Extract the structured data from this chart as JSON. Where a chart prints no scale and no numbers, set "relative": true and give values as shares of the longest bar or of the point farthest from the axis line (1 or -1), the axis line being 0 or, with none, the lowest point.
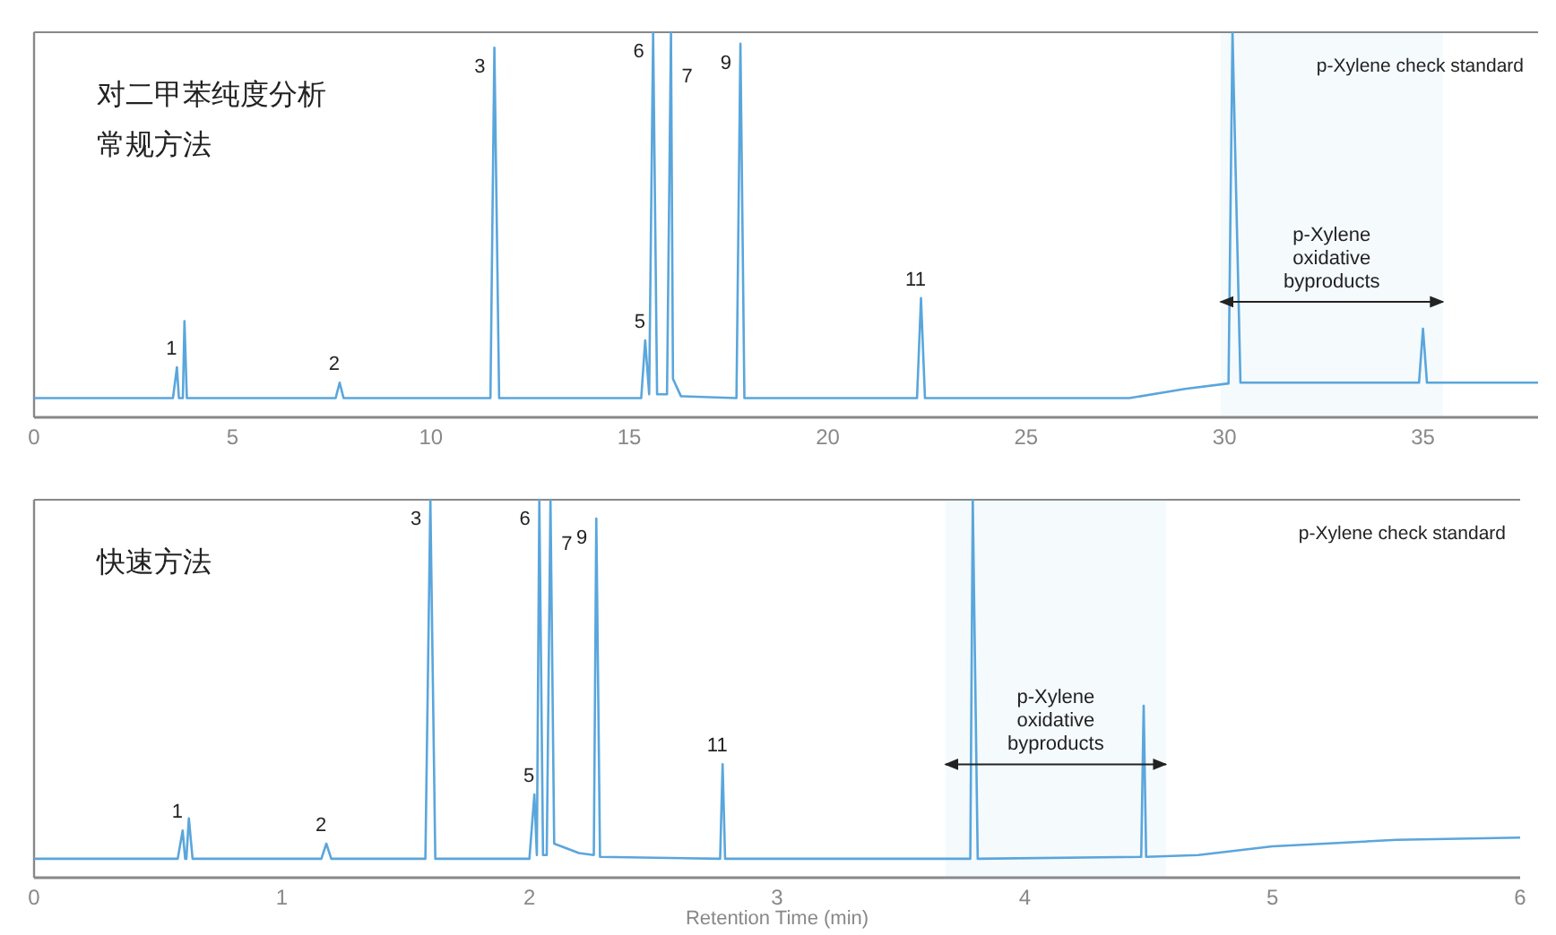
{
  "chart_data": [
    {
      "type": "line",
      "relative": true,
      "title": "对二甲苯纯度分析",
      "subtitle": "常规方法",
      "xlim": [
        0,
        37.9
      ],
      "xticks": [
        0,
        5,
        10,
        15,
        20,
        25,
        30,
        35
      ],
      "grid": false,
      "series": [
        {
          "color": "#5aa6dc",
          "x": [
            0,
            3.5,
            3.6,
            3.65,
            3.75,
            3.79,
            3.85,
            7.6,
            7.7,
            7.8,
            11.5,
            11.6,
            11.72,
            15.3,
            15.4,
            15.5,
            15.6,
            15.7,
            15.95,
            16.05,
            16.1,
            16.3,
            17.7,
            17.8,
            17.9,
            22.25,
            22.35,
            22.45,
            27.6,
            29,
            30.1,
            30.2,
            30.4,
            34.9,
            35.0,
            35.1,
            37.9
          ],
          "values": [
            0.05,
            0.05,
            0.13,
            0.05,
            0.05,
            0.25,
            0.05,
            0.05,
            0.09,
            0.05,
            0.05,
            0.96,
            0.05,
            0.05,
            0.2,
            0.06,
            1,
            0.06,
            0.06,
            1,
            0.1,
            0.055,
            0.05,
            0.97,
            0.05,
            0.05,
            0.31,
            0.05,
            0.05,
            0.074,
            0.088,
            1,
            0.09,
            0.09,
            0.23,
            0.09,
            0.09
          ]
        }
      ],
      "bands": [
        {
          "axis": "x",
          "from": 29.9,
          "to": 35.5,
          "label": "p-Xylene\noxidative\nbyproducts"
        }
      ],
      "annotations": [
        "p-Xylene check standard",
        {
          "text": "1",
          "x": 3.6,
          "y": 0.13
        },
        {
          "text": "2",
          "x": 7.7,
          "y": 0.09
        },
        {
          "text": "3",
          "x": 11.6,
          "y": 0.96
        },
        {
          "text": "5",
          "x": 15.4,
          "y": 0.2
        },
        {
          "text": "6",
          "x": 15.6,
          "y": 1
        },
        {
          "text": "7",
          "x": 16.05,
          "y": 1
        },
        {
          "text": "9",
          "x": 17.8,
          "y": 0.97
        },
        {
          "text": "11",
          "x": 22.35,
          "y": 0.31
        }
      ]
    },
    {
      "type": "line",
      "relative": true,
      "title": "快速方法",
      "xlabel": "Retention Time (min)",
      "xlim": [
        0,
        6
      ],
      "xticks": [
        0,
        1,
        2,
        3,
        4,
        5,
        6
      ],
      "grid": false,
      "series": [
        {
          "color": "#5aa6dc",
          "x": [
            0,
            0.58,
            0.6,
            0.61,
            0.615,
            0.625,
            0.64,
            1.16,
            1.18,
            1.2,
            1.58,
            1.6,
            1.62,
            2.0,
            2.02,
            2.03,
            2.04,
            2.055,
            2.07,
            2.085,
            2.1,
            2.2,
            2.26,
            2.27,
            2.285,
            2.77,
            2.78,
            2.79,
            3.78,
            3.79,
            3.81,
            4.47,
            4.48,
            4.49,
            4.7,
            5,
            5.5,
            6
          ],
          "values": [
            0.05,
            0.05,
            0.125,
            0.05,
            0.05,
            0.157,
            0.05,
            0.05,
            0.09,
            0.05,
            0.05,
            1,
            0.05,
            0.05,
            0.22,
            0.06,
            1,
            0.06,
            0.06,
            1,
            0.09,
            0.065,
            0.06,
            0.95,
            0.055,
            0.05,
            0.3,
            0.05,
            0.05,
            1,
            0.05,
            0.055,
            0.455,
            0.055,
            0.06,
            0.083,
            0.1,
            0.106
          ]
        }
      ],
      "bands": [
        {
          "axis": "x",
          "from": 3.68,
          "to": 4.57,
          "label": "p-Xylene\noxidative\nbyproducts"
        }
      ],
      "annotations": [
        "p-Xylene check standard",
        {
          "text": "1",
          "x": 0.6,
          "y": 0.125
        },
        {
          "text": "2",
          "x": 1.18,
          "y": 0.09
        },
        {
          "text": "3",
          "x": 1.6,
          "y": 1
        },
        {
          "text": "5",
          "x": 2.02,
          "y": 0.22
        },
        {
          "text": "6",
          "x": 2.04,
          "y": 1
        },
        {
          "text": "7",
          "x": 2.085,
          "y": 1
        },
        {
          "text": "9",
          "x": 2.27,
          "y": 0.95
        },
        {
          "text": "11",
          "x": 2.78,
          "y": 0.3
        }
      ]
    }
  ]
}
